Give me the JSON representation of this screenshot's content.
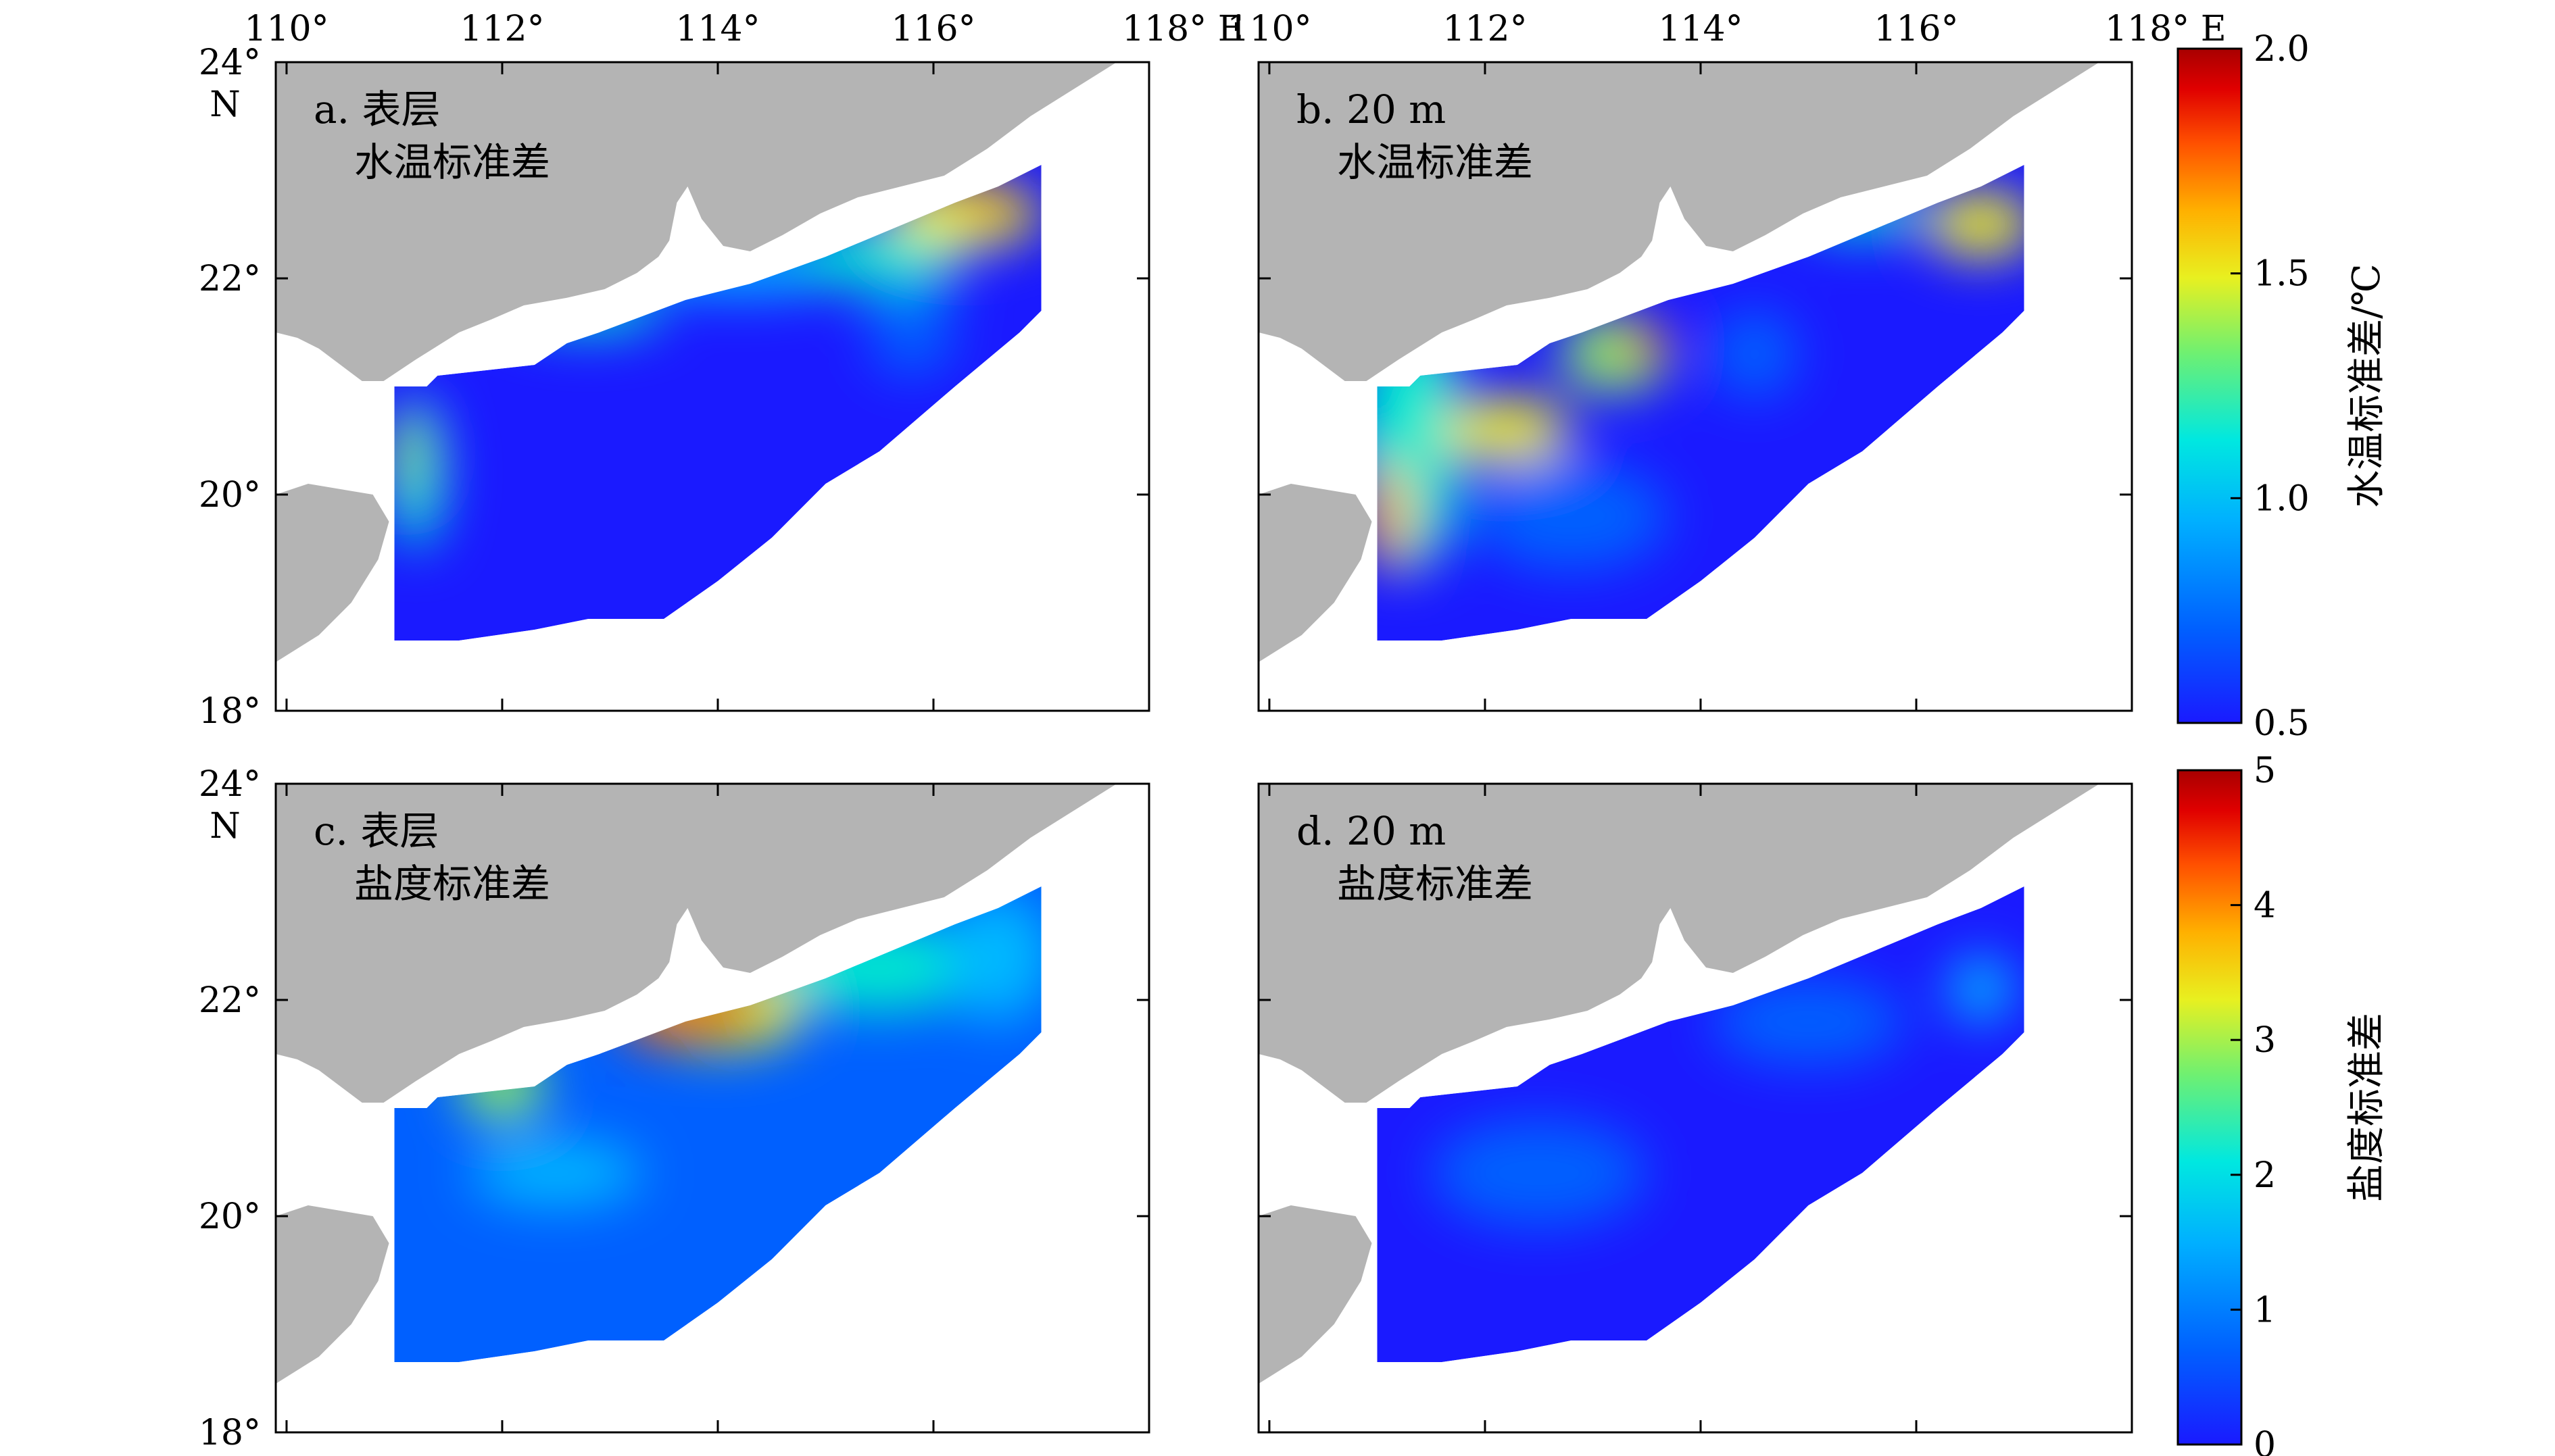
{
  "panels": [
    {
      "id": "a",
      "line1": "a. 表层",
      "line2": "水温标准差",
      "field": "temp_surface"
    },
    {
      "id": "b",
      "line1": "b. 20 m",
      "line2": "水温标准差",
      "field": "temp_20m"
    },
    {
      "id": "c",
      "line1": "c. 表层",
      "line2": "盐度标准差",
      "field": "sal_surface"
    },
    {
      "id": "d",
      "line1": "d. 20 m",
      "line2": "盐度标准差",
      "field": "sal_20m"
    }
  ],
  "axes": {
    "lon_range": [
      109.9,
      118.0
    ],
    "lat_range": [
      18.0,
      24.0
    ],
    "lon_ticks": [
      "110°",
      "112°",
      "114°",
      "116°",
      "118° E"
    ],
    "lat_ticks": [
      "24°",
      "22°",
      "20°",
      "18°"
    ],
    "north_label": "N"
  },
  "colorbars": [
    {
      "label": "水温标准差/℃",
      "ticks": [
        "2.0",
        "1.5",
        "1.0",
        "0.5"
      ],
      "range": [
        0.5,
        2.0
      ]
    },
    {
      "label": "盐度标准差",
      "ticks": [
        "5",
        "4",
        "3",
        "2",
        "1",
        "0"
      ],
      "range": [
        0,
        5
      ]
    }
  ],
  "colors": {
    "land": "#b4b4b4",
    "ocean": "#ffffff",
    "frame": "#000000",
    "colormap": [
      "#1a1aff",
      "#0060ff",
      "#00b8ff",
      "#00e8d0",
      "#90f060",
      "#f0f020",
      "#ffb000",
      "#ff5000",
      "#e00000",
      "#b00000"
    ]
  }
}
